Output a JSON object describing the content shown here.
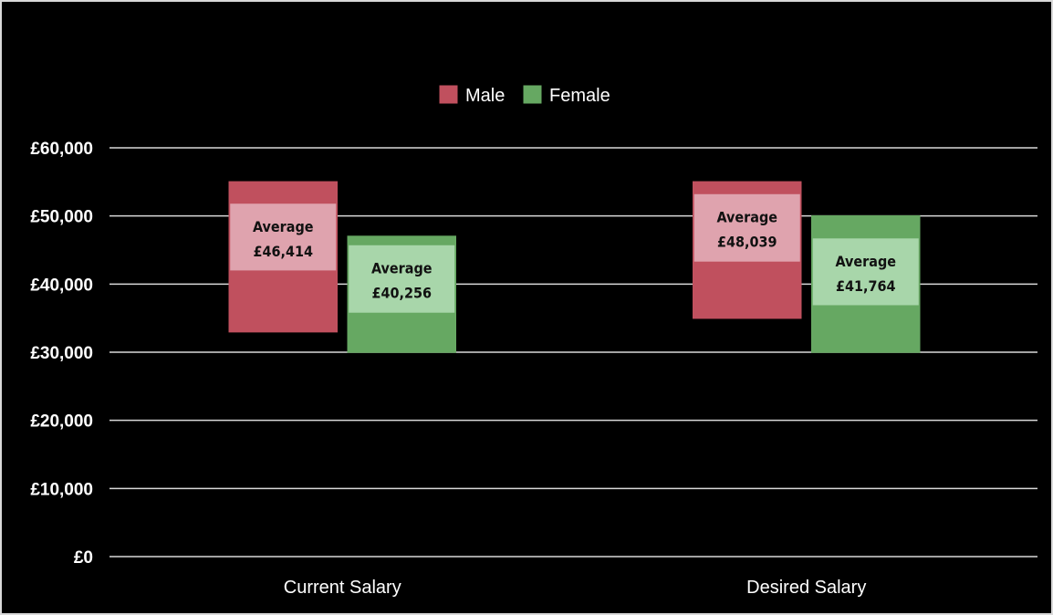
{
  "chart_data": {
    "type": "bar",
    "subtype": "floating-range-with-average-band",
    "categories": [
      "Current Salary",
      "Desired Salary"
    ],
    "series": [
      {
        "name": "Male",
        "color": "#c0505e",
        "band_color": "#dfa3ae",
        "ranges": [
          {
            "min": 33000,
            "max": 55000,
            "band_low": 42000,
            "band_high": 51800,
            "average": 46414,
            "label_title": "Average",
            "label_value": "£46,414"
          },
          {
            "min": 35000,
            "max": 55000,
            "band_low": 43300,
            "band_high": 53200,
            "average": 48039,
            "label_title": "Average",
            "label_value": "£48,039"
          }
        ]
      },
      {
        "name": "Female",
        "color": "#66a862",
        "band_color": "#a8d6aa",
        "ranges": [
          {
            "min": 30000,
            "max": 47000,
            "band_low": 35800,
            "band_high": 45700,
            "average": 40256,
            "label_title": "Average",
            "label_value": "£40,256"
          },
          {
            "min": 30000,
            "max": 50000,
            "band_low": 36900,
            "band_high": 46700,
            "average": 41764,
            "label_title": "Average",
            "label_value": "£41,764"
          }
        ]
      }
    ],
    "y_ticks": [
      "£0",
      "£10,000",
      "£20,000",
      "£30,000",
      "£40,000",
      "£50,000",
      "£60,000"
    ],
    "ylim": [
      0,
      60000
    ],
    "grid": true,
    "legend_position": "top-center",
    "title": "",
    "xlabel": "",
    "ylabel": ""
  },
  "theme": {
    "background": "#000000",
    "gridline": "#d9d9d9",
    "text": "#ffffff"
  }
}
